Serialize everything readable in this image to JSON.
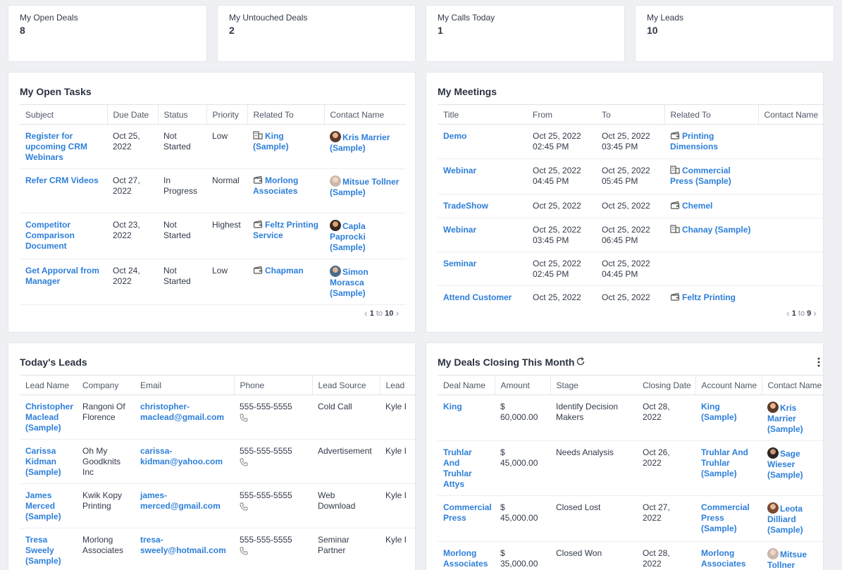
{
  "stats": [
    {
      "title": "My Open Deals",
      "value": "8"
    },
    {
      "title": "My Untouched Deals",
      "value": "2"
    },
    {
      "title": "My Calls Today",
      "value": "1"
    },
    {
      "title": "My Leads",
      "value": "10"
    }
  ],
  "tasks": {
    "title": "My Open Tasks",
    "headers": [
      "Subject",
      "Due Date",
      "Status",
      "Priority",
      "Related To",
      "Contact Name"
    ],
    "rows": [
      {
        "subject": "Register for upcoming CRM Webinars",
        "due": "Oct 25, 2022",
        "status": "Not Started",
        "priority": "Low",
        "related": "King (Sample)",
        "related_icon": "building-icon",
        "contact": "Kris Marrier (Sample)"
      },
      {
        "subject": "Refer CRM Videos",
        "due": "Oct 27, 2022",
        "status": "In Progress",
        "priority": "Normal",
        "related": "Morlong Associates",
        "related_icon": "deal-icon",
        "contact": "Mitsue Tollner (Sample)"
      },
      {
        "subject": "Competitor Comparison Document",
        "due": "Oct 23, 2022",
        "status": "Not Started",
        "priority": "Highest",
        "related": "Feltz Printing Service",
        "related_icon": "deal-icon",
        "contact": "Capla Paprocki (Sample)"
      },
      {
        "subject": "Get Apporval from Manager",
        "due": "Oct 24, 2022",
        "status": "Not Started",
        "priority": "Low",
        "related": "Chapman",
        "related_icon": "deal-icon",
        "contact": "Simon Morasca (Sample)"
      }
    ],
    "pager": {
      "from": "1",
      "to_word": "to",
      "to": "10"
    }
  },
  "meetings": {
    "title": "My Meetings",
    "headers": [
      "Title",
      "From",
      "To",
      "Related To",
      "Contact Name"
    ],
    "rows": [
      {
        "title": "Demo",
        "from": "Oct 25, 2022 02:45 PM",
        "to": "Oct 25, 2022 03:45 PM",
        "related": "Printing Dimensions",
        "related_icon": "deal-icon"
      },
      {
        "title": "Webinar",
        "from": "Oct 25, 2022 04:45 PM",
        "to": "Oct 25, 2022 05:45 PM",
        "related": "Commercial Press (Sample)",
        "related_icon": "building-icon"
      },
      {
        "title": "TradeShow",
        "from": "Oct 25, 2022",
        "to": "Oct 25, 2022",
        "related": "Chemel",
        "related_icon": "deal-icon"
      },
      {
        "title": "Webinar",
        "from": "Oct 25, 2022 03:45 PM",
        "to": "Oct 25, 2022 06:45 PM",
        "related": "Chanay (Sample)",
        "related_icon": "building-icon"
      },
      {
        "title": "Seminar",
        "from": "Oct 25, 2022 02:45 PM",
        "to": "Oct 25, 2022 04:45 PM",
        "related": "",
        "related_icon": ""
      },
      {
        "title": "Attend Customer",
        "from": "Oct 25, 2022",
        "to": "Oct 25, 2022",
        "related": "Feltz Printing",
        "related_icon": "deal-icon"
      }
    ],
    "pager": {
      "from": "1",
      "to_word": "to",
      "to": "9"
    }
  },
  "leads": {
    "title": "Today's Leads",
    "headers": [
      "Lead Name",
      "Company",
      "Email",
      "Phone",
      "Lead Source",
      "Lead"
    ],
    "rows": [
      {
        "name": "Christopher Maclead (Sample)",
        "company": "Rangoni Of Florence",
        "email": "christopher-maclead@gmail.com",
        "phone": "555-555-5555",
        "source": "Cold Call",
        "owner": "Kyle I"
      },
      {
        "name": "Carissa Kidman (Sample)",
        "company": "Oh My Goodknits Inc",
        "email": "carissa-kidman@yahoo.com",
        "phone": "555-555-5555",
        "source": "Advertisement",
        "owner": "Kyle I"
      },
      {
        "name": "James Merced (Sample)",
        "company": "Kwik Kopy Printing",
        "email": "james-merced@gmail.com",
        "phone": "555-555-5555",
        "source": "Web Download",
        "owner": "Kyle I"
      },
      {
        "name": "Tresa Sweely (Sample)",
        "company": "Morlong Associates",
        "email": "tresa-sweely@hotmail.com",
        "phone": "555-555-5555",
        "source": "Seminar Partner",
        "owner": "Kyle I"
      }
    ]
  },
  "deals": {
    "title": "My Deals Closing This Month",
    "headers": [
      "Deal Name",
      "Amount",
      "Stage",
      "Closing Date",
      "Account Name",
      "Contact Name"
    ],
    "rows": [
      {
        "name": "King",
        "amount": "$ 60,000.00",
        "stage": "Identify Decision Makers",
        "closing": "Oct 28, 2022",
        "account": "King (Sample)",
        "contact": "Kris Marrier (Sample)"
      },
      {
        "name": "Truhlar And Truhlar Attys",
        "amount": "$ 45,000.00",
        "stage": "Needs Analysis",
        "closing": "Oct 26, 2022",
        "account": "Truhlar And Truhlar (Sample)",
        "contact": "Sage Wieser (Sample)"
      },
      {
        "name": "Commercial Press",
        "amount": "$ 45,000.00",
        "stage": "Closed Lost",
        "closing": "Oct 27, 2022",
        "account": "Commercial Press (Sample)",
        "contact": "Leota Dilliard (Sample)"
      },
      {
        "name": "Morlong Associates",
        "amount": "$ 35,000.00",
        "stage": "Closed Won",
        "closing": "Oct 28, 2022",
        "account": "Morlong Associates (Sample)",
        "contact": "Mitsue Tollner (Sample)"
      }
    ]
  },
  "colors": {
    "link": "#2d7fd9",
    "background": "#eef0f4",
    "card": "#ffffff"
  }
}
